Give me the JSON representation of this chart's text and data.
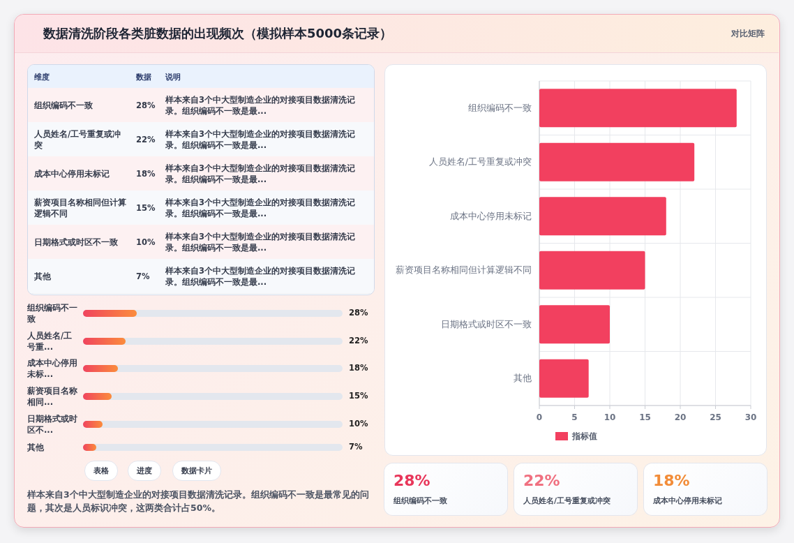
{
  "chart_data": [
    {
      "type": "other",
      "title": "数据清洗阶段各类脏数据的出现频次（模拟样本5000条记录）",
      "subtitle": "对比矩阵"
    },
    {
      "type": "other",
      "categories": [
        "组织编码不一致",
        "人员姓名/工号重复或冲突",
        "成本中心停用未标记",
        "薪资项目名称相同但计算逻辑不同",
        "日期格式或时区不一致",
        "其他"
      ],
      "value_labels": [
        "28%",
        "22%",
        "18%",
        "15%",
        "10%",
        "7%"
      ],
      "annotations": [
        "维度",
        "数据",
        "说明",
        "样本来自3个中大型制造企业的对接项目数据清洗记录。组织编码不一致是最...",
        "样本来自3个中大型制造企业的对接项目数据清洗记录。组织编码不一致是最...",
        "样本来自3个中大型制造企业的对接项目数据清洗记录。组织编码不一致是最...",
        "样本来自3个中大型制造企业的对接项目数据清洗记录。组织编码不一致是最...",
        "样本来自3个中大型制造企业的对接项目数据清洗记录。组织编码不一致是最...",
        "样本来自3个中大型制造企业的对接项目数据清洗记录。组织编码不一致是最..."
      ]
    },
    {
      "type": "other",
      "categories": [
        "组织编码不一致",
        "人员姓名/工号重...",
        "成本中心停用未标...",
        "薪资项目名称相同...",
        "日期格式或时区不...",
        "其他"
      ],
      "values": [
        28,
        22,
        18,
        15,
        10,
        7
      ],
      "value_labels": [
        "28%",
        "22%",
        "18%",
        "15%",
        "10%",
        "7%"
      ],
      "annotations": [
        "表格",
        "进度",
        "数据卡片",
        "样本来自3个中大型制造企业的对接项目数据清洗记录。组织编码不一致是最常见的问题，其次是人员标识冲突，这两类合计占50%。"
      ]
    },
    {
      "type": "bar",
      "orientation": "horizontal",
      "categories": [
        "组织编码不一致",
        "人员姓名/工号重复或冲突",
        "成本中心停用未标记",
        "薪资项目名称相同但计算逻辑不同",
        "日期格式或时区不一致",
        "其他"
      ],
      "series": [
        {
          "name": "指标值",
          "color": "#f2405f",
          "values": [
            28,
            22,
            18,
            15,
            10,
            7
          ]
        }
      ],
      "xlim": [
        0,
        30
      ],
      "xticks": [
        0,
        5,
        10,
        15,
        20,
        25,
        30
      ],
      "grid": true,
      "legend": "bottom"
    },
    {
      "type": "other",
      "categories": [
        "组织编码不一致",
        "人员姓名/工号重复或冲突",
        "成本中心停用未标记"
      ],
      "value_labels": [
        "28%",
        "22%",
        "18%"
      ],
      "colors": [
        "#e8365a",
        "#f07080",
        "#f28c38"
      ]
    }
  ]
}
